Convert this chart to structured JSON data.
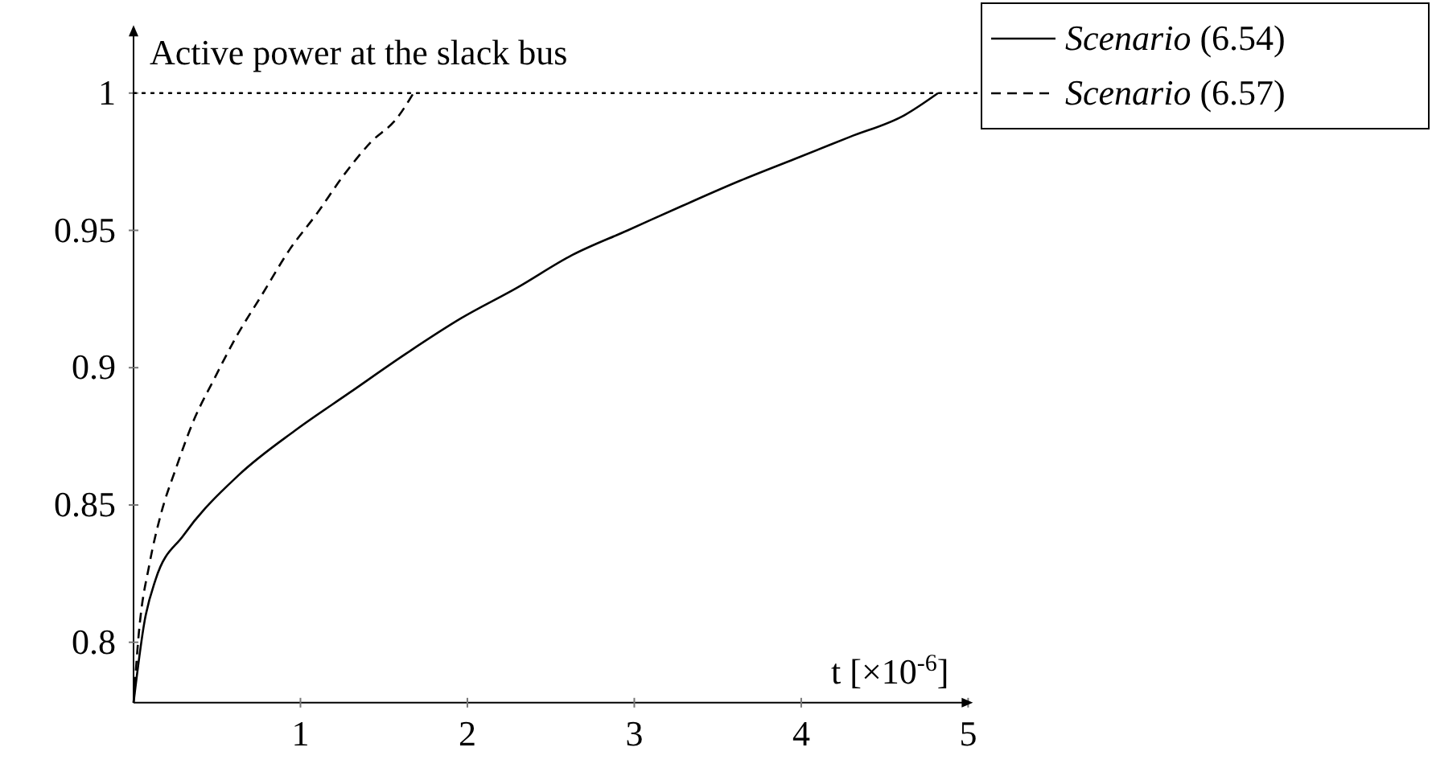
{
  "chart_data": {
    "type": "line",
    "title": "Active power at the slack bus",
    "xlabel": "t [×10$^{-6}$]",
    "xlim": [
      0,
      5
    ],
    "ylim": [
      0.778,
      1.023
    ],
    "xticks": [
      1,
      2,
      3,
      4,
      5
    ],
    "yticks": [
      0.8,
      0.85,
      0.9,
      0.95,
      1
    ],
    "grid": false,
    "legend": "top right",
    "marker": "none",
    "ref_lines": [
      {
        "axis": "y",
        "value": 1,
        "line_style": "dotted",
        "color": "#000000"
      }
    ],
    "series": [
      {
        "name": "Scenario (6.54)",
        "color": "#000000",
        "line_style": "solid",
        "x": [
          0,
          0.067,
          0.133,
          0.3,
          0.632,
          0.965,
          1.297,
          1.63,
          1.963,
          2.295,
          2.628,
          2.96,
          3.29,
          3.63,
          3.96,
          4.29,
          4.62,
          4.82
        ],
        "values": [
          0.778,
          0.808,
          0.823,
          0.839,
          0.861,
          0.877,
          0.891,
          0.905,
          0.918,
          0.929,
          0.941,
          0.95,
          0.959,
          0.968,
          0.976,
          0.984,
          0.992,
          1.0
        ]
      },
      {
        "name": "Scenario (6.57)",
        "color": "#000000",
        "line_style": "dashed",
        "x": [
          0,
          0.032,
          0.097,
          0.161,
          0.258,
          0.355,
          0.484,
          0.613,
          0.774,
          0.935,
          1.097,
          1.258,
          1.42,
          1.58,
          1.677
        ],
        "values": [
          0.778,
          0.8035,
          0.829,
          0.846,
          0.864,
          0.88,
          0.896,
          0.911,
          0.927,
          0.943,
          0.956,
          0.97,
          0.982,
          0.991,
          1.0
        ]
      }
    ]
  }
}
